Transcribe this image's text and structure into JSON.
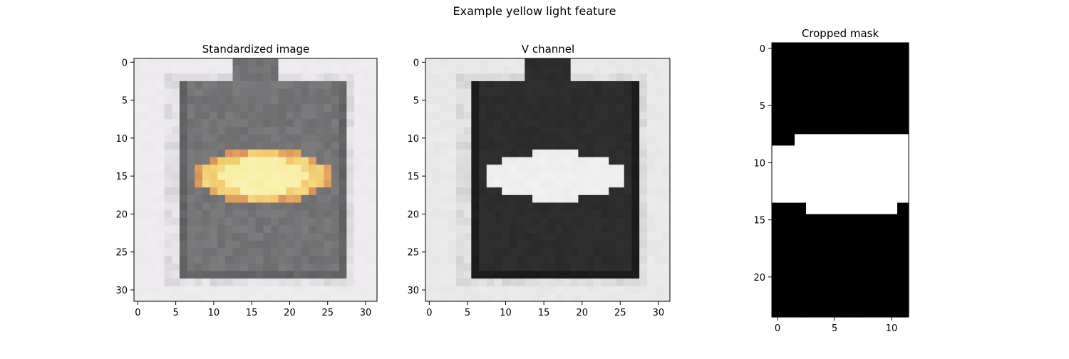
{
  "figure": {
    "suptitle": "Example yellow light feature"
  },
  "chart_data": [
    {
      "type": "heatmap",
      "title": "Standardized image",
      "image_size": [
        32,
        32
      ],
      "xlim": [
        -0.5,
        31.5
      ],
      "ylim": [
        31.5,
        -0.5
      ],
      "xticks": [
        0,
        5,
        10,
        15,
        20,
        25,
        30
      ],
      "yticks": [
        0,
        5,
        10,
        15,
        20,
        25,
        30
      ],
      "xlabel": "",
      "ylabel": "",
      "colors": {
        "background": "#ece9ec",
        "housing": "#7c7c7e",
        "housing_edge": "#6a6a6c",
        "light_core": "#f6eea0",
        "light_mid": "#f2c86a",
        "light_edge": "#d9905a"
      },
      "regions": {
        "housing": {
          "x": [
            6,
            27
          ],
          "y": [
            3,
            28
          ]
        },
        "housing_top": {
          "x": [
            13,
            18
          ],
          "y": [
            0,
            3
          ]
        },
        "light": {
          "cx": 16.5,
          "cy": 15,
          "rx": 9,
          "ry": 3.5
        }
      }
    },
    {
      "type": "heatmap",
      "title": "V channel",
      "image_size": [
        32,
        32
      ],
      "xlim": [
        -0.5,
        31.5
      ],
      "ylim": [
        31.5,
        -0.5
      ],
      "xticks": [
        0,
        5,
        10,
        15,
        20,
        25,
        30
      ],
      "yticks": [
        0,
        5,
        10,
        15,
        20,
        25,
        30
      ],
      "xlabel": "",
      "ylabel": "",
      "colors": {
        "background": "#e6e6e6",
        "housing": "#303030",
        "housing_edge": "#1e1e1e",
        "light": "#ececec"
      },
      "regions": {
        "housing": {
          "x": [
            6,
            27
          ],
          "y": [
            3,
            28
          ]
        },
        "housing_top": {
          "x": [
            13,
            18
          ],
          "y": [
            0,
            3
          ]
        },
        "light": {
          "cx": 16.5,
          "cy": 15,
          "rx": 9,
          "ry": 3.2
        }
      }
    },
    {
      "type": "heatmap",
      "title": "Cropped mask",
      "image_size": [
        12,
        24
      ],
      "xlim": [
        -0.5,
        11.5
      ],
      "ylim": [
        23.5,
        -0.5
      ],
      "xticks": [
        0,
        5,
        10
      ],
      "yticks": [
        0,
        5,
        10,
        15,
        20
      ],
      "xlabel": "",
      "ylabel": "",
      "colors": {
        "zero": "#000000",
        "one": "#ffffff"
      },
      "mask_rows": [
        "000000000000",
        "000000000000",
        "000000000000",
        "000000000000",
        "000000000000",
        "000000000000",
        "000000000000",
        "000000000000",
        "001111111111",
        "111111111111",
        "111111111111",
        "111111111111",
        "111111111111",
        "111111111111",
        "000111111110",
        "000000000000",
        "000000000000",
        "000000000000",
        "000000000000",
        "000000000000",
        "000000000000",
        "000000000000",
        "000000000000",
        "000000000000"
      ]
    }
  ]
}
